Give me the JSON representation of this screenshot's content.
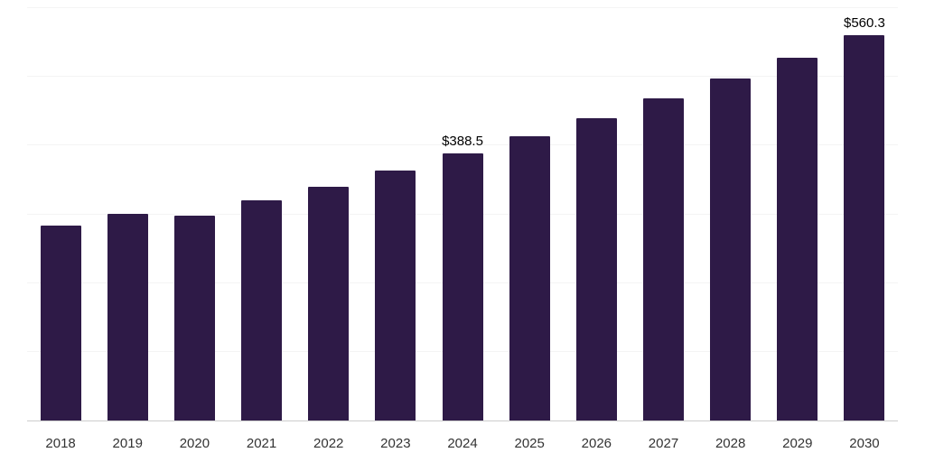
{
  "chart_data": {
    "type": "bar",
    "title": "",
    "xlabel": "",
    "ylabel": "",
    "categories": [
      "2018",
      "2019",
      "2020",
      "2021",
      "2022",
      "2023",
      "2024",
      "2025",
      "2026",
      "2027",
      "2028",
      "2029",
      "2030"
    ],
    "values": [
      284,
      301,
      298,
      320,
      340,
      364,
      388.5,
      414,
      440,
      469,
      498,
      528,
      560.3
    ],
    "point_labels": [
      "",
      "",
      "",
      "",
      "",
      "",
      "$388.5",
      "",
      "",
      "",
      "",
      "",
      "$560.3"
    ],
    "ylim": [
      0,
      600
    ],
    "grid_step": 100,
    "grid": "horizontal",
    "legend": "none",
    "bar_color": "#2e1a47",
    "gridline_color": "#f4f4f4",
    "axis_line_color": "#cccccc",
    "value_label_color": "#000000",
    "tick_label_color": "#333333",
    "background_color": "#ffffff"
  }
}
